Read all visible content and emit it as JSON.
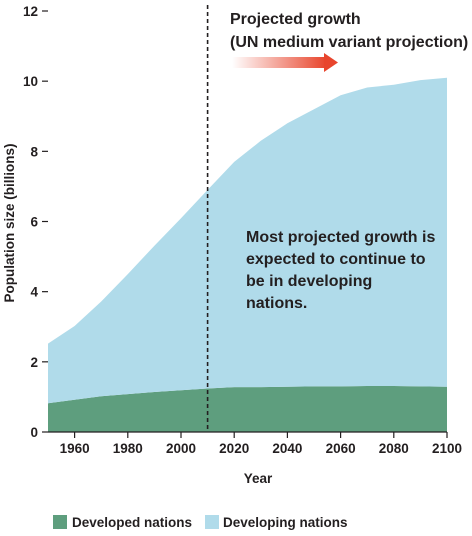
{
  "chart_data": {
    "type": "area",
    "stacked": true,
    "xlabel": "Year",
    "ylabel": "Population size (billions)",
    "xlim": [
      1950,
      2100
    ],
    "ylim": [
      0,
      12
    ],
    "x_ticks": [
      1960,
      1980,
      2000,
      2020,
      2040,
      2060,
      2080,
      2100
    ],
    "y_ticks": [
      0,
      2,
      4,
      6,
      8,
      10,
      12
    ],
    "x": [
      1950,
      1960,
      1970,
      1980,
      1990,
      2000,
      2010,
      2020,
      2030,
      2040,
      2050,
      2060,
      2070,
      2080,
      2090,
      2100
    ],
    "series": [
      {
        "name": "Developed nations",
        "color": "#5e9e7e",
        "values": [
          0.82,
          0.92,
          1.02,
          1.08,
          1.14,
          1.19,
          1.24,
          1.28,
          1.28,
          1.29,
          1.3,
          1.3,
          1.31,
          1.31,
          1.3,
          1.29
        ]
      },
      {
        "name": "Developing nations",
        "color": "#b0dbea",
        "values": [
          1.7,
          2.1,
          2.7,
          3.42,
          4.17,
          4.9,
          5.66,
          6.42,
          7.02,
          7.51,
          7.9,
          8.3,
          8.51,
          8.59,
          8.73,
          8.81
        ]
      }
    ],
    "projection_start": 2010,
    "annotations": {
      "projection_line1": "Projected growth",
      "projection_line2": "(UN medium variant projection)",
      "note_lines": [
        "Most projected growth is",
        "expected to continue to",
        "be in developing",
        "nations."
      ]
    },
    "legend_position": "bottom",
    "grid": false
  }
}
